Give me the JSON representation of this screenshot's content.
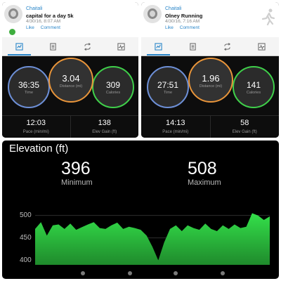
{
  "activities": [
    {
      "owner": "Chaitali",
      "title": "capital for a day 5k",
      "date": "4/30/16, 8:07 AM",
      "actions": {
        "like": "Like",
        "comment": "Comment"
      },
      "tabs": [
        "summary-icon",
        "details-icon",
        "laps-icon",
        "graph-icon"
      ],
      "time": {
        "value": "36:35",
        "label": "Time"
      },
      "distance": {
        "value": "3.04",
        "label": "Distance (mi)"
      },
      "calories": {
        "value": "309",
        "label": "Calories"
      },
      "pace": {
        "value": "12:03",
        "label": "Pace (min/mi)"
      },
      "elev_gain": {
        "value": "138",
        "label": "Elev Gain (ft)"
      }
    },
    {
      "owner": "Chaitali",
      "title": "Olney Running",
      "date": "4/30/16, 7:16 AM",
      "actions": {
        "like": "Like",
        "comment": "Comment"
      },
      "tabs": [
        "summary-icon",
        "details-icon",
        "laps-icon",
        "graph-icon"
      ],
      "time": {
        "value": "27:51",
        "label": "Time"
      },
      "distance": {
        "value": "1.96",
        "label": "Distance (mi)"
      },
      "calories": {
        "value": "141",
        "label": "Calories"
      },
      "pace": {
        "value": "14:13",
        "label": "Pace (min/mi)"
      },
      "elev_gain": {
        "value": "58",
        "label": "Elev Gain (ft)"
      }
    }
  ],
  "elevation": {
    "title": "Elevation (ft)",
    "minimum": {
      "value": "396",
      "label": "Minimum"
    },
    "maximum": {
      "value": "508",
      "label": "Maximum"
    }
  },
  "colors": {
    "accent": "#2a86c9",
    "time_ring": "#6d8fd6",
    "distance_ring": "#e9953a",
    "calories_ring": "#3fcf4a",
    "elevation_fill": "#34e04a"
  },
  "chart_data": {
    "type": "area",
    "title": "Elevation (ft)",
    "xlabel": "",
    "ylabel": "",
    "yticks": [
      500,
      450,
      400
    ],
    "ylim": [
      390,
      512
    ],
    "grid": true,
    "x": [
      0,
      1,
      2,
      3,
      4,
      5,
      6,
      7,
      8,
      9,
      10,
      11,
      12,
      13,
      14,
      15,
      16,
      17,
      18,
      19,
      20,
      21,
      22,
      23,
      24,
      25,
      26,
      27,
      28,
      29,
      30,
      31,
      32,
      33,
      34,
      35,
      36,
      37,
      38,
      39,
      40
    ],
    "values": [
      470,
      485,
      455,
      478,
      480,
      470,
      482,
      468,
      474,
      480,
      485,
      472,
      470,
      478,
      484,
      470,
      475,
      472,
      468,
      455,
      430,
      400,
      440,
      470,
      478,
      465,
      478,
      472,
      468,
      482,
      470,
      465,
      478,
      470,
      480,
      472,
      475,
      505,
      500,
      490,
      498
    ]
  },
  "pager": {
    "dots": 4
  }
}
